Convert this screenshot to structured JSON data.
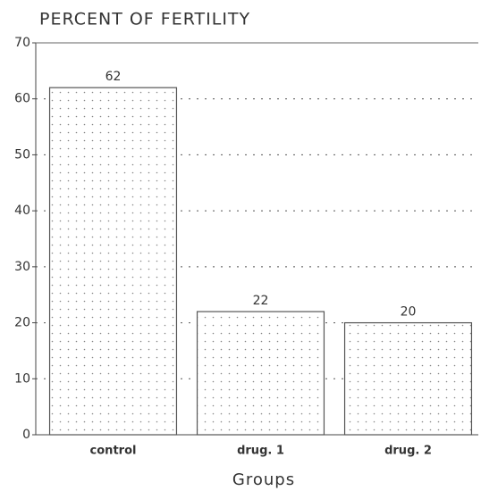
{
  "chart_data": {
    "type": "bar",
    "title": "PERCENT OF FERTILITY",
    "x_label": "Groups",
    "categories": [
      "control",
      "drug. 1",
      "drug. 2"
    ],
    "values": [
      62,
      22,
      20
    ],
    "color": "#555555",
    "ylim": [
      0,
      70
    ],
    "yticks": [
      0,
      10,
      20,
      30,
      40,
      50,
      60,
      70
    ],
    "grid": true
  }
}
